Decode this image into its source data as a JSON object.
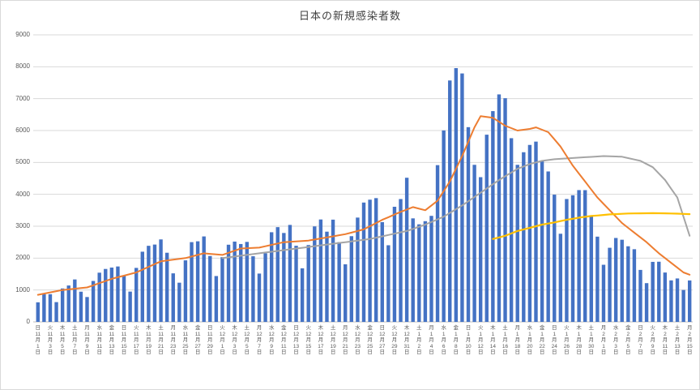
{
  "chart_data": {
    "type": "bar",
    "title": "日本の新規感染者数",
    "ylim": [
      0,
      9000
    ],
    "yticks": [
      0,
      1000,
      2000,
      3000,
      4000,
      5000,
      6000,
      7000,
      8000,
      9000
    ],
    "grid": true,
    "legend": "none",
    "weekday_cycle": [
      "日",
      "月",
      "火",
      "水",
      "木",
      "金",
      "土"
    ],
    "calendar": [
      {
        "month": 11,
        "days": 30
      },
      {
        "month": 12,
        "days": 31
      },
      {
        "month": 1,
        "days": 31
      },
      {
        "month": 2,
        "days": 15
      }
    ],
    "x_label_interval": 2,
    "month_suffix": "月",
    "day_suffix": "日",
    "axis_color": "#bfbfbf",
    "grid_color": "#d9d9d9",
    "bars": {
      "name": "daily-new-cases",
      "color": "#4472c4",
      "values": [
        614,
        867,
        868,
        620,
        1048,
        1141,
        1331,
        947,
        780,
        1284,
        1543,
        1660,
        1704,
        1738,
        1440,
        950,
        1693,
        2201,
        2386,
        2425,
        2586,
        2168,
        1522,
        1229,
        1930,
        2501,
        2527,
        2680,
        2066,
        1438,
        2030,
        2420,
        2518,
        2442,
        2508,
        2058,
        1515,
        2152,
        2811,
        2971,
        2788,
        3041,
        2387,
        1680,
        2410,
        2994,
        3211,
        2829,
        3206,
        2501,
        1806,
        2688,
        3271,
        3742,
        3832,
        3881,
        3127,
        2403,
        3610,
        3852,
        4520,
        3246,
        3059,
        3158,
        3325,
        4915,
        6004,
        7570,
        7957,
        7790,
        6106,
        4925,
        4538,
        5870,
        6609,
        7133,
        7014,
        5760,
        4925,
        5320,
        5549,
        5653,
        5045,
        4717,
        3990,
        2764,
        3853,
        3971,
        4133,
        4131,
        3344,
        2673,
        1791,
        2324,
        2631,
        2576,
        2371,
        2279,
        1630,
        1215,
        1882,
        1887,
        1548,
        1302,
        1362,
        1000,
        1300
      ]
    },
    "lines": [
      {
        "name": "gray-line",
        "color": "#a5a5a5",
        "width": 2,
        "points": [
          [
            30,
            2000
          ],
          [
            36,
            2150
          ],
          [
            42,
            2300
          ],
          [
            48,
            2450
          ],
          [
            54,
            2600
          ],
          [
            60,
            2850
          ],
          [
            63,
            3050
          ],
          [
            66,
            3300
          ],
          [
            69,
            3650
          ],
          [
            72,
            4050
          ],
          [
            75,
            4450
          ],
          [
            78,
            4800
          ],
          [
            80,
            4950
          ],
          [
            82,
            5050
          ],
          [
            84,
            5100
          ],
          [
            88,
            5150
          ],
          [
            92,
            5200
          ],
          [
            95,
            5180
          ],
          [
            98,
            5050
          ],
          [
            100,
            4850
          ],
          [
            102,
            4450
          ],
          [
            104,
            3900
          ],
          [
            105,
            3300
          ],
          [
            106,
            2700
          ]
        ]
      },
      {
        "name": "orange-line",
        "color": "#ed7d31",
        "width": 2,
        "points": [
          [
            0,
            850
          ],
          [
            4,
            1000
          ],
          [
            8,
            1080
          ],
          [
            12,
            1350
          ],
          [
            16,
            1550
          ],
          [
            20,
            1900
          ],
          [
            24,
            2000
          ],
          [
            27,
            2150
          ],
          [
            30,
            2100
          ],
          [
            33,
            2300
          ],
          [
            36,
            2330
          ],
          [
            40,
            2500
          ],
          [
            44,
            2550
          ],
          [
            47,
            2650
          ],
          [
            50,
            2750
          ],
          [
            53,
            2900
          ],
          [
            56,
            3200
          ],
          [
            59,
            3450
          ],
          [
            61,
            3600
          ],
          [
            63,
            3500
          ],
          [
            65,
            3800
          ],
          [
            67,
            4400
          ],
          [
            69,
            5200
          ],
          [
            71,
            6100
          ],
          [
            72,
            6450
          ],
          [
            74,
            6400
          ],
          [
            76,
            6150
          ],
          [
            78,
            6000
          ],
          [
            80,
            6050
          ],
          [
            81,
            6100
          ],
          [
            83,
            5950
          ],
          [
            85,
            5500
          ],
          [
            87,
            4900
          ],
          [
            89,
            4400
          ],
          [
            91,
            3900
          ],
          [
            93,
            3500
          ],
          [
            95,
            3100
          ],
          [
            97,
            2800
          ],
          [
            99,
            2500
          ],
          [
            101,
            2150
          ],
          [
            103,
            1850
          ],
          [
            105,
            1550
          ],
          [
            106,
            1480
          ]
        ]
      },
      {
        "name": "yellow-line",
        "color": "#ffc000",
        "width": 2.2,
        "points": [
          [
            74,
            2600
          ],
          [
            76,
            2700
          ],
          [
            78,
            2850
          ],
          [
            80,
            2950
          ],
          [
            82,
            3050
          ],
          [
            84,
            3120
          ],
          [
            86,
            3200
          ],
          [
            88,
            3270
          ],
          [
            90,
            3320
          ],
          [
            93,
            3370
          ],
          [
            96,
            3400
          ],
          [
            100,
            3410
          ],
          [
            103,
            3400
          ],
          [
            106,
            3380
          ]
        ]
      }
    ]
  }
}
